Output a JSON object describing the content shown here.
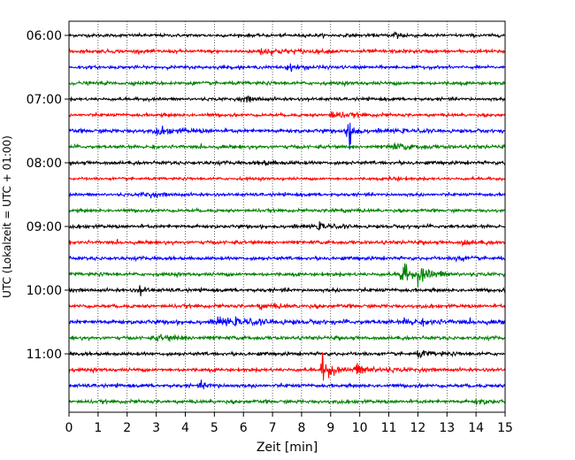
{
  "chart_data": {
    "type": "line",
    "title": "",
    "xlabel": "Zeit  [min]",
    "ylabel": "UTC (Lokalzeit = UTC + 01:00)",
    "xlim": [
      0,
      15
    ],
    "x_ticks": [
      0,
      1,
      2,
      3,
      4,
      5,
      6,
      7,
      8,
      9,
      10,
      11,
      12,
      13,
      14,
      15
    ],
    "grid": "vertical-dotted",
    "y_ticks": [
      {
        "label": "06:00",
        "trace": 0
      },
      {
        "label": "07:00",
        "trace": 4
      },
      {
        "label": "08:00",
        "trace": 8
      },
      {
        "label": "09:00",
        "trace": 12
      },
      {
        "label": "10:00",
        "trace": 16
      },
      {
        "label": "11:00",
        "trace": 20
      }
    ],
    "trace_colors": [
      "#000000",
      "#ff0000",
      "#0000ff",
      "#008000"
    ],
    "series": [
      {
        "start": "06:00",
        "color": "#000000",
        "noise": 0.8,
        "events": [
          {
            "t": 11.2,
            "amp": 2.5,
            "dur": 0.6
          }
        ]
      },
      {
        "start": "06:15",
        "color": "#ff0000",
        "noise": 0.9,
        "events": [
          {
            "t": 6.5,
            "amp": 1.5,
            "dur": 2.0
          }
        ]
      },
      {
        "start": "06:30",
        "color": "#0000ff",
        "noise": 0.8,
        "events": [
          {
            "t": 7.5,
            "amp": 1.2,
            "dur": 1.5
          }
        ]
      },
      {
        "start": "06:45",
        "color": "#008000",
        "noise": 0.9,
        "events": []
      },
      {
        "start": "07:00",
        "color": "#000000",
        "noise": 0.8,
        "events": [
          {
            "t": 6.0,
            "amp": 1.2,
            "dur": 1.0
          }
        ]
      },
      {
        "start": "07:15",
        "color": "#ff0000",
        "noise": 0.8,
        "events": [
          {
            "t": 9.0,
            "amp": 1.8,
            "dur": 1.2
          }
        ]
      },
      {
        "start": "07:30",
        "color": "#0000ff",
        "noise": 1.0,
        "events": [
          {
            "t": 3.0,
            "amp": 1.6,
            "dur": 1.5
          },
          {
            "t": 9.6,
            "amp": 16.0,
            "dur": 0.3
          }
        ]
      },
      {
        "start": "07:45",
        "color": "#008000",
        "noise": 0.9,
        "events": [
          {
            "t": 11.0,
            "amp": 1.6,
            "dur": 1.5
          }
        ]
      },
      {
        "start": "08:00",
        "color": "#000000",
        "noise": 0.9,
        "events": [
          {
            "t": 6.5,
            "amp": 1.2,
            "dur": 1.0
          }
        ]
      },
      {
        "start": "08:15",
        "color": "#ff0000",
        "noise": 0.7,
        "events": [
          {
            "t": 11.0,
            "amp": 1.2,
            "dur": 0.8
          }
        ]
      },
      {
        "start": "08:30",
        "color": "#0000ff",
        "noise": 0.8,
        "events": [
          {
            "t": 2.5,
            "amp": 1.2,
            "dur": 1.2
          }
        ]
      },
      {
        "start": "08:45",
        "color": "#008000",
        "noise": 0.8,
        "events": [
          {
            "t": 9.0,
            "amp": 1.2,
            "dur": 1.0
          }
        ]
      },
      {
        "start": "09:00",
        "color": "#000000",
        "noise": 0.9,
        "events": [
          {
            "t": 8.5,
            "amp": 1.2,
            "dur": 1.0
          }
        ]
      },
      {
        "start": "09:15",
        "color": "#ff0000",
        "noise": 0.9,
        "events": [
          {
            "t": 13.5,
            "amp": 1.2,
            "dur": 1.0
          }
        ]
      },
      {
        "start": "09:30",
        "color": "#0000ff",
        "noise": 0.9,
        "events": [
          {
            "t": 13.3,
            "amp": 1.8,
            "dur": 0.6
          }
        ]
      },
      {
        "start": "09:45",
        "color": "#008000",
        "noise": 0.9,
        "events": [
          {
            "t": 11.4,
            "amp": 9.0,
            "dur": 0.5
          },
          {
            "t": 12.0,
            "amp": 4.0,
            "dur": 1.2
          }
        ]
      },
      {
        "start": "10:00",
        "color": "#000000",
        "noise": 0.9,
        "events": [
          {
            "t": 2.4,
            "amp": 2.8,
            "dur": 0.4
          }
        ]
      },
      {
        "start": "10:15",
        "color": "#ff0000",
        "noise": 0.9,
        "events": [
          {
            "t": 6.5,
            "amp": 1.2,
            "dur": 1.5
          }
        ]
      },
      {
        "start": "10:30",
        "color": "#0000ff",
        "noise": 1.1,
        "events": [
          {
            "t": 5.0,
            "amp": 1.5,
            "dur": 3.0
          },
          {
            "t": 11.5,
            "amp": 1.3,
            "dur": 2.0
          }
        ]
      },
      {
        "start": "10:45",
        "color": "#008000",
        "noise": 0.9,
        "events": [
          {
            "t": 3.0,
            "amp": 1.3,
            "dur": 2.0
          }
        ]
      },
      {
        "start": "11:00",
        "color": "#000000",
        "noise": 0.9,
        "events": [
          {
            "t": 12.0,
            "amp": 1.6,
            "dur": 1.0
          }
        ]
      },
      {
        "start": "11:15",
        "color": "#ff0000",
        "noise": 0.9,
        "events": [
          {
            "t": 8.7,
            "amp": 7.5,
            "dur": 0.6
          },
          {
            "t": 9.8,
            "amp": 3.0,
            "dur": 1.5
          }
        ]
      },
      {
        "start": "11:30",
        "color": "#0000ff",
        "noise": 0.9,
        "events": [
          {
            "t": 4.5,
            "amp": 1.3,
            "dur": 1.0
          }
        ]
      },
      {
        "start": "11:45",
        "color": "#008000",
        "noise": 0.9,
        "events": [
          {
            "t": 14.0,
            "amp": 1.2,
            "dur": 1.0
          }
        ]
      }
    ]
  }
}
